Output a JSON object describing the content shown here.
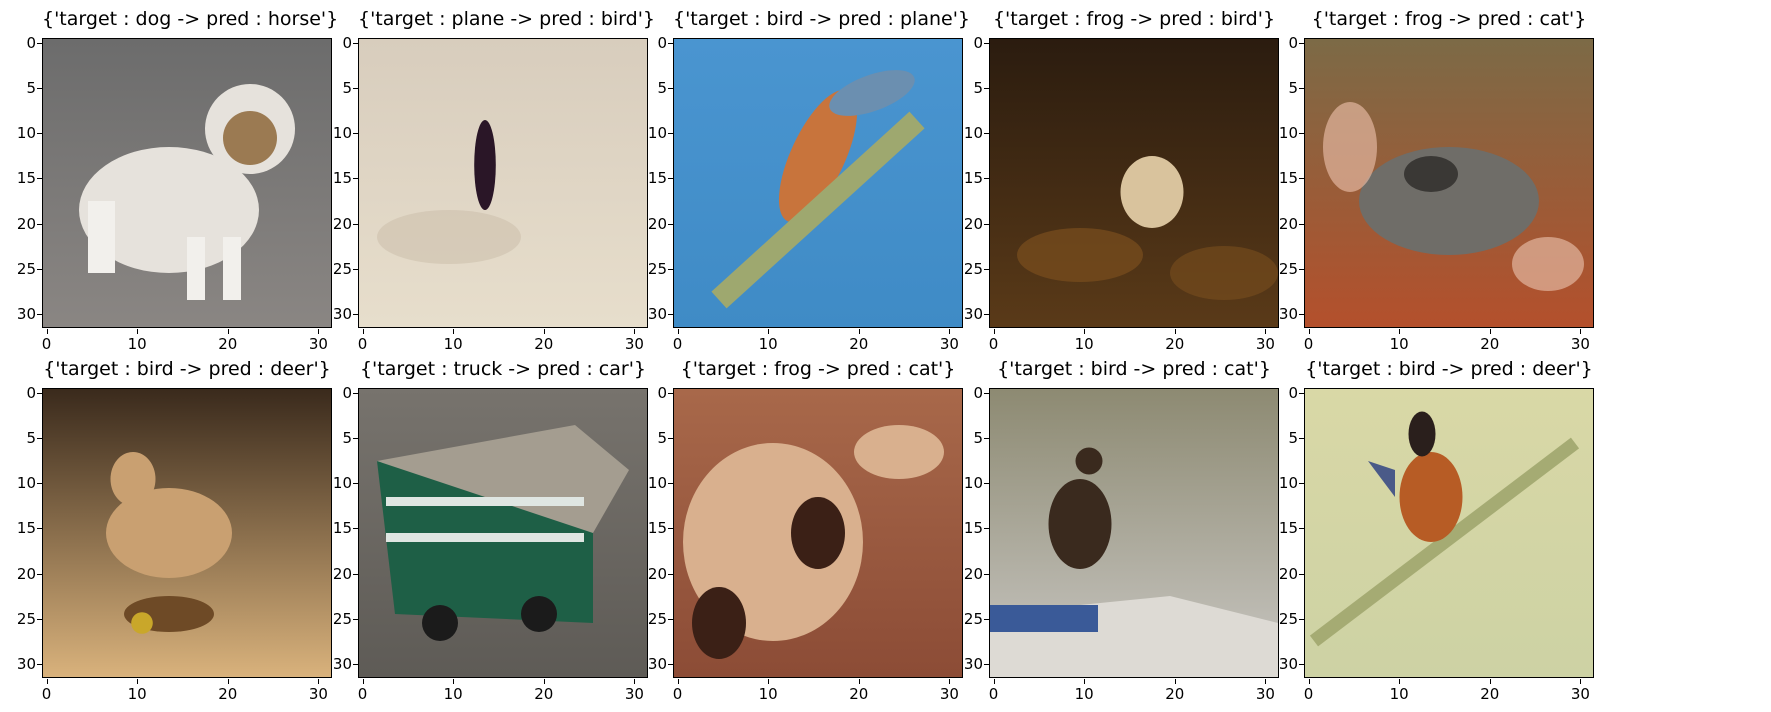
{
  "figure": {
    "x_ticks": [
      "0",
      "10",
      "20",
      "30"
    ],
    "y_ticks": [
      "0",
      "5",
      "10",
      "15",
      "20",
      "25",
      "30"
    ],
    "panels": [
      {
        "title": "{'target : dog -> pred : horse'}",
        "subject": "small white and tan dog on grey pavement",
        "colors": {
          "bg_top": "#6c6c6c",
          "bg_bottom": "#8a8683",
          "subject": "#e6e2dc",
          "accent": "#9b7a52"
        }
      },
      {
        "title": "{'target : plane -> pred : bird'}",
        "subject": "dark airplane silhouette against pale cloudy sky",
        "colors": {
          "bg_top": "#d8cdbd",
          "bg_bottom": "#e7decc",
          "subject": "#2a1627",
          "accent": "#c9bca8"
        }
      },
      {
        "title": "{'target : bird -> pred : plane'}",
        "subject": "kingfisher on a branch against blue background",
        "colors": {
          "bg_top": "#4a95d0",
          "bg_bottom": "#3f8bc6",
          "subject": "#c8743c",
          "accent": "#9ea86f"
        }
      },
      {
        "title": "{'target : frog -> pred : bird'}",
        "subject": "pale frog among dark brown leaves",
        "colors": {
          "bg_top": "#2b1c0f",
          "bg_bottom": "#5a3a18",
          "subject": "#d9c39d",
          "accent": "#7a4e1e"
        }
      },
      {
        "title": "{'target : frog -> pred : cat'}",
        "subject": "grey frog on red-orange leaf litter",
        "colors": {
          "bg_top": "#7c6a46",
          "bg_bottom": "#b4502c",
          "subject": "#6f6d68",
          "accent": "#e2b6a0"
        }
      },
      {
        "title": "{'target : bird -> pred : deer'}",
        "subject": "tan bird on sandy ground, dark background",
        "colors": {
          "bg_top": "#3a2a1c",
          "bg_bottom": "#d9b27c",
          "subject": "#c9a071",
          "accent": "#6e4a26"
        }
      },
      {
        "title": "{'target : truck -> pred : car'}",
        "subject": "green truck with grey load on road",
        "colors": {
          "bg_top": "#77736d",
          "bg_bottom": "#5e5b56",
          "subject": "#1e5f46",
          "accent": "#a49d90"
        }
      },
      {
        "title": "{'target : frog -> pred : cat'}",
        "subject": "close-up of tan frog on brown surface",
        "colors": {
          "bg_top": "#a8684a",
          "bg_bottom": "#8c4c36",
          "subject": "#d9b08e",
          "accent": "#3b2016"
        }
      },
      {
        "title": "{'target : bird -> pred : cat'}",
        "subject": "dark bird perched above white-blue surface, grey foliage",
        "colors": {
          "bg_top": "#8d8a72",
          "bg_bottom": "#c9c7c3",
          "subject": "#3a2a1e",
          "accent": "#3a5a98"
        }
      },
      {
        "title": "{'target : bird -> pred : deer'}",
        "subject": "orange and black bird on pale green branches",
        "colors": {
          "bg_top": "#d9d8a6",
          "bg_bottom": "#cdd2a4",
          "subject": "#b75c25",
          "accent": "#2a1f1c"
        }
      }
    ]
  }
}
